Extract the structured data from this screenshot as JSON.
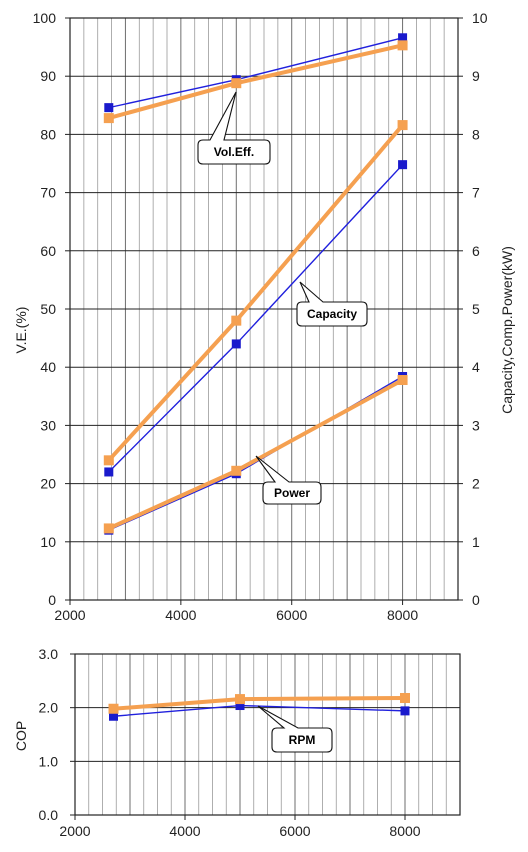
{
  "chart_data": [
    {
      "type": "line",
      "title": "",
      "xlabel": "",
      "ylabel": "V.E.(%)",
      "y2label": "Capacity,Comp.Power(kW)",
      "xlim": [
        2000,
        9000
      ],
      "ylim": [
        0,
        100
      ],
      "y2lim": [
        0,
        10
      ],
      "x_ticks": [
        2000,
        4000,
        6000,
        8000
      ],
      "y_ticks": [
        0,
        10,
        20,
        30,
        40,
        50,
        60,
        70,
        80,
        90,
        100
      ],
      "y2_ticks": [
        0,
        1,
        2,
        3,
        4,
        5,
        6,
        7,
        8,
        9,
        10
      ],
      "x_tick_labels": [
        "2000",
        "4000",
        "6000",
        "8000"
      ],
      "y_tick_labels": [
        "0",
        "10",
        "20",
        "30",
        "40",
        "50",
        "60",
        "70",
        "80",
        "90",
        "100"
      ],
      "y2_tick_labels": [
        "0",
        "1",
        "2",
        "3",
        "4",
        "5",
        "6",
        "7",
        "8",
        "9",
        "10"
      ],
      "grid": true,
      "x": [
        2700,
        5000,
        8000
      ],
      "series": [
        {
          "group": "vol-eff",
          "axis": "left",
          "color": "#2020dd",
          "marker": "#1a1acc",
          "stroke": 1.4,
          "values": [
            84.6,
            89.4,
            96.6
          ]
        },
        {
          "group": "vol-eff",
          "axis": "left",
          "color": "#f5a050",
          "marker": "#f5a050",
          "stroke": 4,
          "values": [
            82.8,
            88.8,
            95.3
          ]
        },
        {
          "group": "capacity",
          "axis": "right",
          "color": "#2020dd",
          "marker": "#1a1acc",
          "stroke": 1.4,
          "values": [
            2.2,
            4.4,
            7.48
          ]
        },
        {
          "group": "capacity",
          "axis": "right",
          "color": "#f5a050",
          "marker": "#f5a050",
          "stroke": 4,
          "values": [
            2.4,
            4.8,
            8.16
          ]
        },
        {
          "group": "power",
          "axis": "right",
          "color": "#2020dd",
          "marker": "#1a1acc",
          "stroke": 1.4,
          "values": [
            1.2,
            2.17,
            3.84
          ]
        },
        {
          "group": "power",
          "axis": "right",
          "color": "#f5a050",
          "marker": "#f5a050",
          "stroke": 4,
          "values": [
            1.23,
            2.22,
            3.78
          ]
        }
      ],
      "annotations": [
        {
          "text": "Vol.Eff.",
          "target": [
            4900,
            88.8
          ]
        },
        {
          "text": "Capacity",
          "target": [
            5300,
            56.0
          ]
        },
        {
          "text": "Power",
          "target": [
            5400,
            24.0
          ]
        }
      ]
    },
    {
      "type": "line",
      "title": "",
      "xlabel": "",
      "ylabel": "COP",
      "xlim": [
        2000,
        9000
      ],
      "ylim": [
        0,
        3
      ],
      "x_ticks": [
        2000,
        4000,
        6000,
        8000
      ],
      "y_ticks": [
        0,
        1,
        2,
        3
      ],
      "x_tick_labels": [
        "2000",
        "4000",
        "6000",
        "8000"
      ],
      "y_tick_labels": [
        "0.0",
        "1.0",
        "2.0",
        "3.0"
      ],
      "grid": true,
      "x": [
        2700,
        5000,
        8000
      ],
      "series": [
        {
          "group": "cop",
          "axis": "left",
          "color": "#2020dd",
          "marker": "#1a1acc",
          "stroke": 1.4,
          "values": [
            1.84,
            2.04,
            1.94
          ]
        },
        {
          "group": "cop",
          "axis": "left",
          "color": "#f5a050",
          "marker": "#f5a050",
          "stroke": 4,
          "values": [
            1.98,
            2.16,
            2.18
          ]
        }
      ],
      "annotations": [
        {
          "text": "RPM",
          "target": [
            5000,
            2.02
          ]
        }
      ]
    }
  ]
}
